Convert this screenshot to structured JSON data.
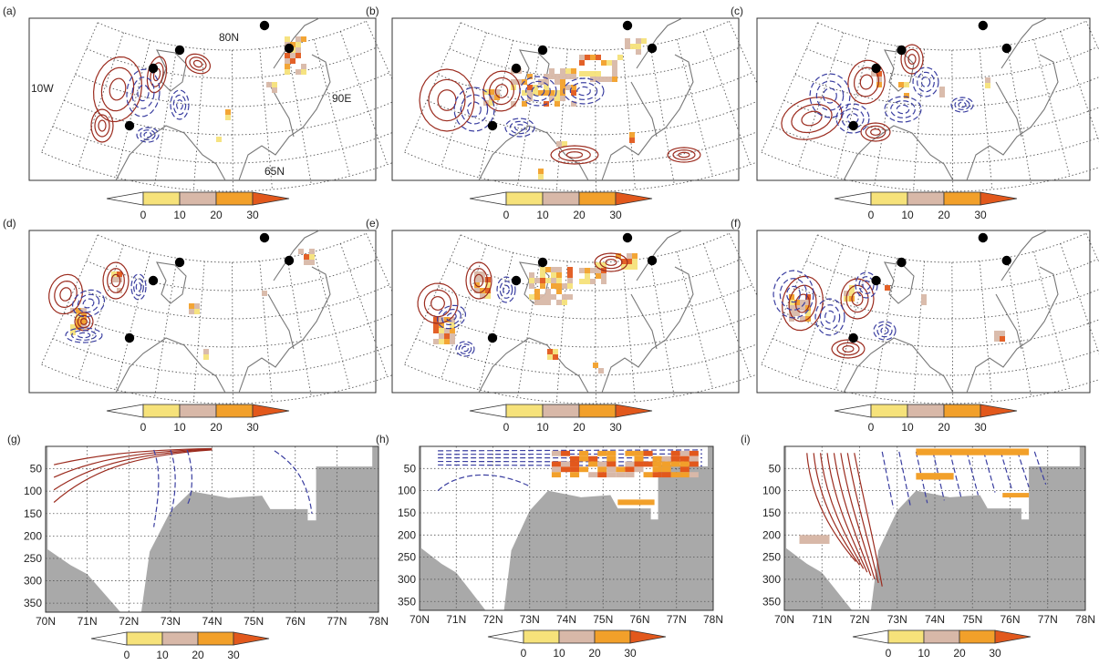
{
  "figure": {
    "colors": {
      "positive": "#9b2b1e",
      "negative": "#3a3ea0",
      "coast": "#777777",
      "seafloor": "#a9a9a9",
      "grid": "#555555",
      "cbar": [
        "#ffffff",
        "#f6e27a",
        "#d8b8a8",
        "#f2a02a",
        "#e2581c"
      ]
    }
  },
  "chart_data": [
    {
      "type": "heatmap",
      "panel": "(a)",
      "projection": "polar-sector map",
      "lon_labels": [
        "10W",
        "90E"
      ],
      "lat_labels": [
        "80N",
        "65N"
      ],
      "colorbar_ticks": [
        "0",
        "10",
        "20",
        "30"
      ],
      "stations": 5
    },
    {
      "type": "heatmap",
      "panel": "(b)",
      "projection": "polar-sector map",
      "colorbar_ticks": [
        "0",
        "10",
        "20",
        "30"
      ],
      "stations": 5
    },
    {
      "type": "heatmap",
      "panel": "(c)",
      "projection": "polar-sector map",
      "colorbar_ticks": [
        "0",
        "10",
        "20",
        "30"
      ],
      "stations": 5
    },
    {
      "type": "heatmap",
      "panel": "(d)",
      "projection": "polar-sector map",
      "colorbar_ticks": [
        "0",
        "10",
        "20",
        "30"
      ],
      "stations": 5
    },
    {
      "type": "heatmap",
      "panel": "(e)",
      "projection": "polar-sector map",
      "colorbar_ticks": [
        "0",
        "10",
        "20",
        "30"
      ],
      "stations": 5
    },
    {
      "type": "heatmap",
      "panel": "(f)",
      "projection": "polar-sector map",
      "colorbar_ticks": [
        "0",
        "10",
        "20",
        "30"
      ],
      "stations": 5
    },
    {
      "type": "heatmap",
      "panel": "(g)",
      "x_ticks": [
        "70N",
        "71N",
        "72N",
        "73N",
        "74N",
        "75N",
        "76N",
        "77N",
        "78N"
      ],
      "y_ticks": [
        "50",
        "100",
        "150",
        "200",
        "250",
        "300",
        "350"
      ],
      "xlim": [
        70,
        78
      ],
      "ylim": [
        370,
        0
      ],
      "colorbar_ticks": [
        "0",
        "10",
        "20",
        "30"
      ]
    },
    {
      "type": "heatmap",
      "panel": "(h)",
      "x_ticks": [
        "70N",
        "71N",
        "72N",
        "73N",
        "74N",
        "75N",
        "76N",
        "77N",
        "78N"
      ],
      "y_ticks": [
        "50",
        "100",
        "150",
        "200",
        "250",
        "300",
        "350"
      ],
      "xlim": [
        70,
        78
      ],
      "ylim": [
        370,
        0
      ],
      "colorbar_ticks": [
        "0",
        "10",
        "20",
        "30"
      ]
    },
    {
      "type": "heatmap",
      "panel": "(i)",
      "x_ticks": [
        "70N",
        "71N",
        "72N",
        "73N",
        "74N",
        "75N",
        "76N",
        "77N",
        "78N"
      ],
      "y_ticks": [
        "50",
        "100",
        "150",
        "200",
        "250",
        "300",
        "350"
      ],
      "xlim": [
        70,
        78
      ],
      "ylim": [
        370,
        0
      ],
      "colorbar_ticks": [
        "0",
        "10",
        "20",
        "30"
      ]
    }
  ]
}
